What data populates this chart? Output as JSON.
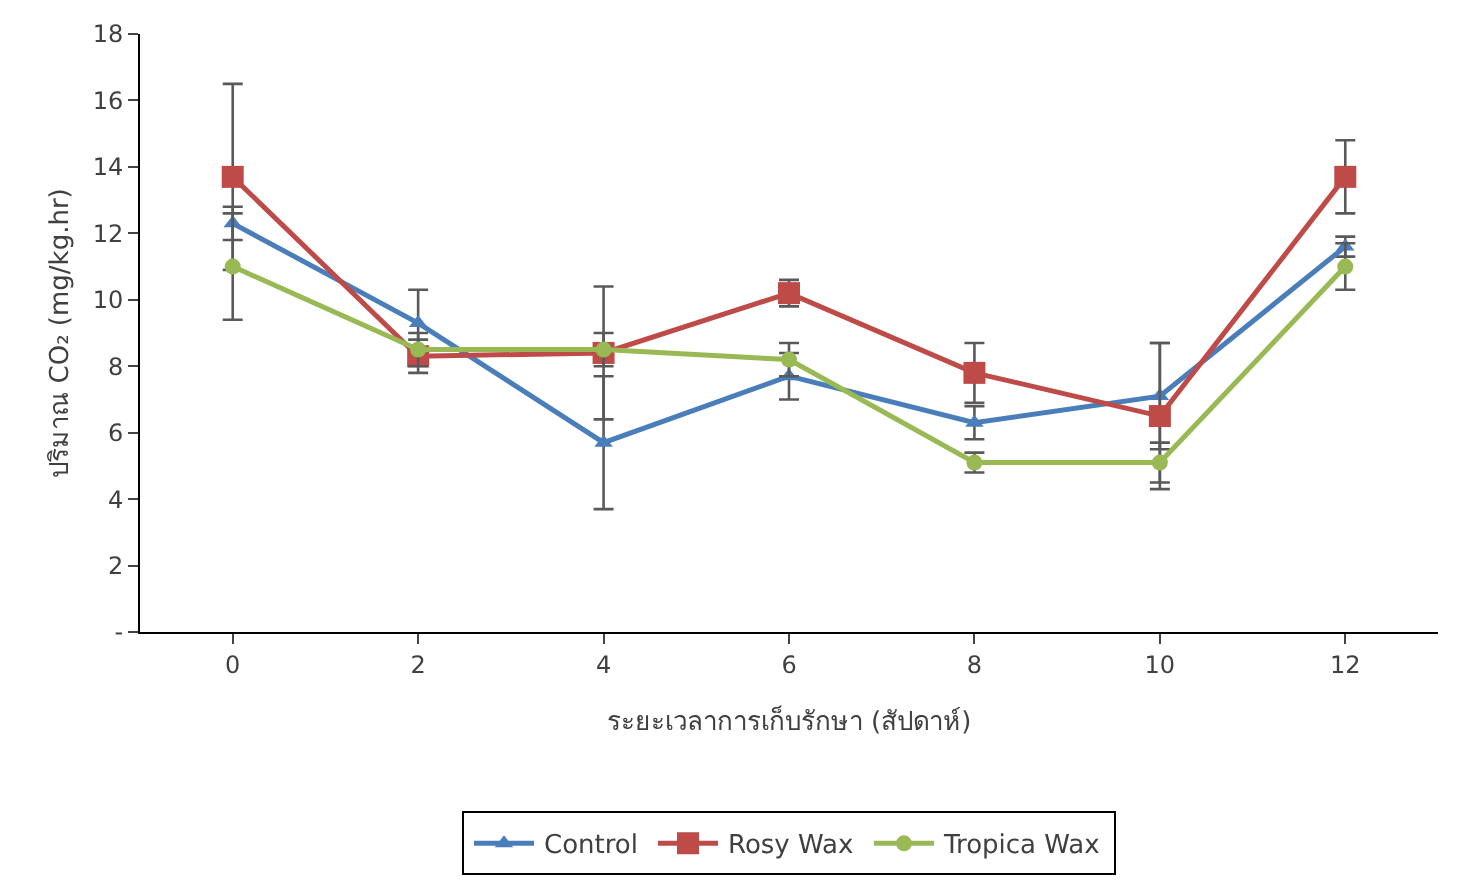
{
  "chart_data": {
    "type": "line",
    "xlabel": "ระยะเวลาการเก็บรักษา (สัปดาห์)",
    "ylabel": "ปริมาณ CO₂ (mg/kg.hr)",
    "categories": [
      "0",
      "2",
      "4",
      "6",
      "8",
      "10",
      "12"
    ],
    "ylim": [
      0,
      18
    ],
    "yticks": [
      {
        "value": 0,
        "label": "-"
      },
      2,
      4,
      6,
      8,
      10,
      12,
      14,
      16,
      18
    ],
    "grid": false,
    "legend": "bottom",
    "line_style": "solid",
    "series": [
      {
        "name": "Control",
        "color": "#4a7ebb",
        "marker": "triangle",
        "values": [
          12.3,
          9.3,
          5.7,
          7.7,
          6.3,
          7.1,
          11.6
        ],
        "errors": [
          0.5,
          1.0,
          2.0,
          0.7,
          0.5,
          1.6,
          0.3
        ]
      },
      {
        "name": "Rosy Wax",
        "color": "#be4b48",
        "marker": "square",
        "values": [
          13.7,
          8.3,
          8.4,
          10.2,
          7.8,
          6.5,
          13.7
        ],
        "errors": [
          2.8,
          0.5,
          2.0,
          0.4,
          0.9,
          2.2,
          1.1
        ]
      },
      {
        "name": "Tropica Wax",
        "color": "#98b954",
        "marker": "circle",
        "values": [
          11.0,
          8.5,
          8.5,
          8.2,
          5.1,
          5.1,
          11.0
        ],
        "errors": [
          1.6,
          0.5,
          0.5,
          0.5,
          0.3,
          0.6,
          0.7
        ]
      }
    ]
  }
}
